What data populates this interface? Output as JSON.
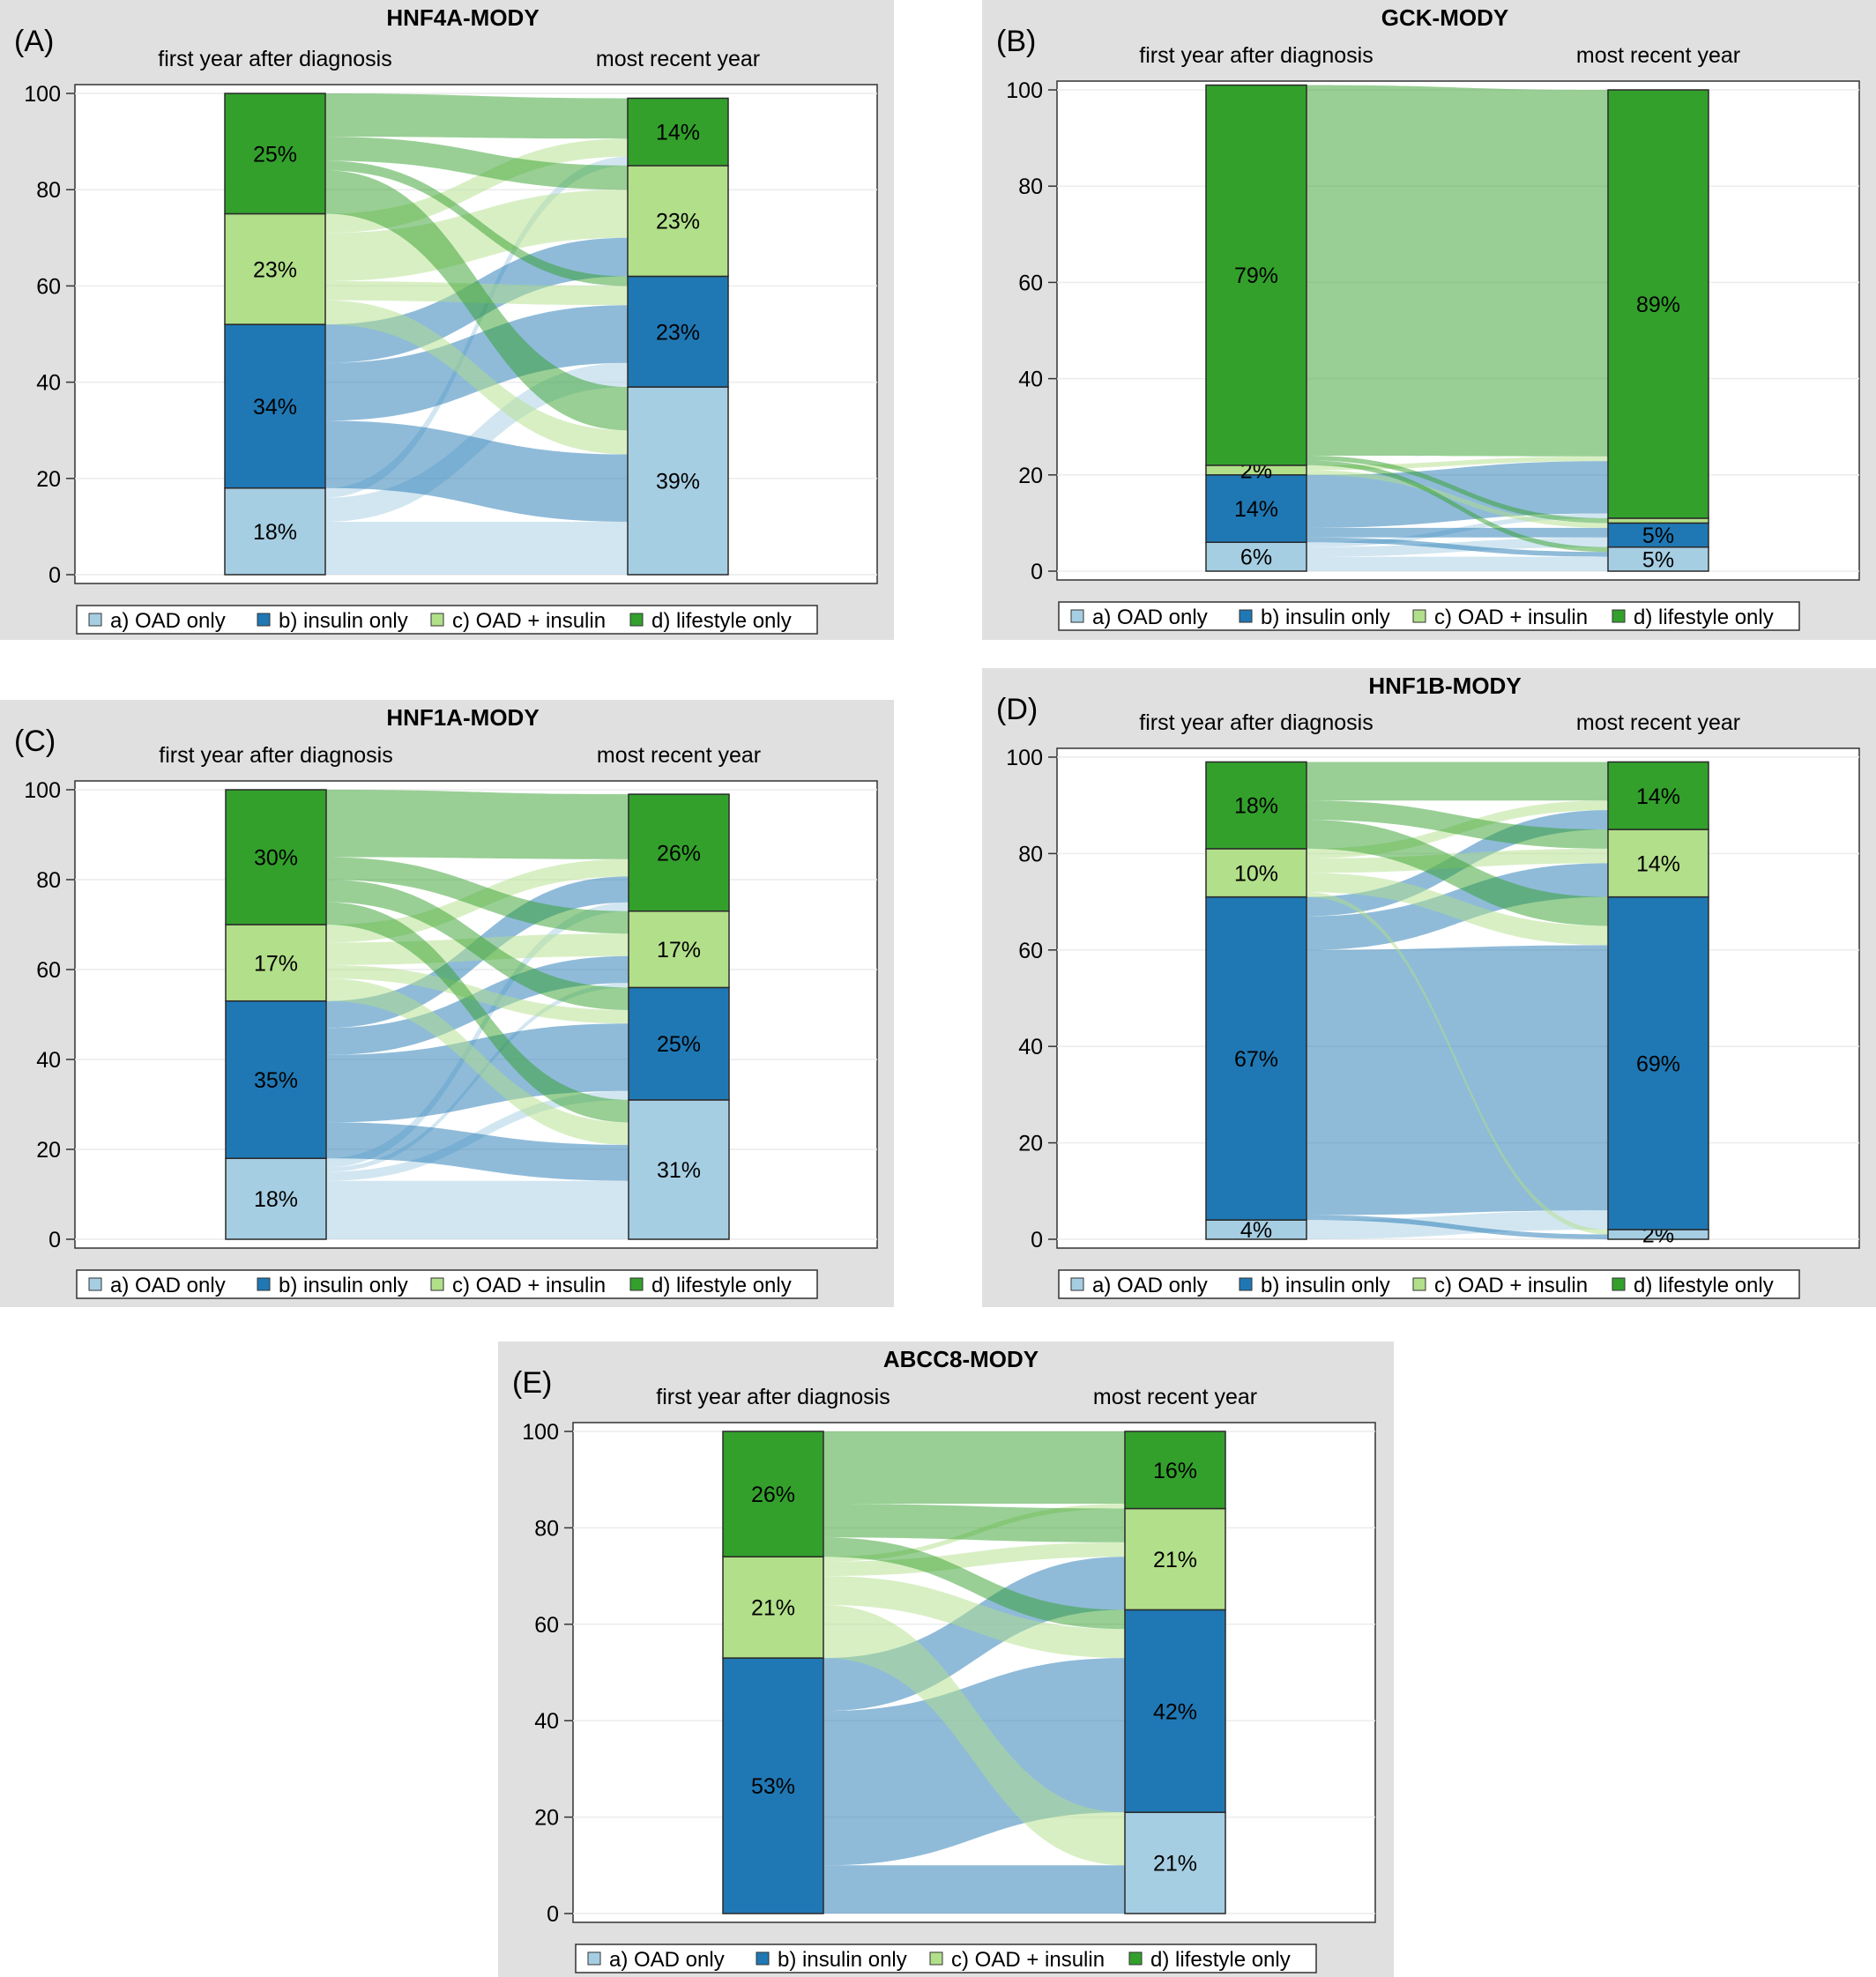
{
  "colors": {
    "oad_only": "#a6cee3",
    "insulin_only": "#1f78b4",
    "oad_insulin": "#b2df8a",
    "lifestyle_only": "#33a02c",
    "panel_background": "#e0e0e0"
  },
  "legend": {
    "items": [
      "a) OAD only",
      "b) insulin only",
      "c) OAD + insulin",
      "d) lifestyle only"
    ]
  },
  "chart_data": [
    {
      "type": "alluvial",
      "label": "(A)",
      "title": "HNF4A-MODY",
      "categories": [
        "first year after diagnosis",
        "most recent year"
      ],
      "yticks": [
        0,
        20,
        40,
        60,
        80,
        100
      ],
      "ylim": [
        0,
        100
      ],
      "first_year": [
        18,
        34,
        23,
        25
      ],
      "first_year_labels": [
        "18%",
        "34%",
        "23%",
        "25%"
      ],
      "recent_year": [
        39,
        23,
        23,
        14
      ],
      "recent_year_labels": [
        "39%",
        "23%",
        "23%",
        "14%"
      ],
      "flows": [
        [
          11,
          5,
          0,
          2
        ],
        [
          14,
          12,
          8,
          0
        ],
        [
          5,
          4,
          10,
          4
        ],
        [
          9,
          2,
          5,
          9
        ]
      ]
    },
    {
      "type": "alluvial",
      "label": "(B)",
      "title": "GCK-MODY",
      "categories": [
        "first year after diagnosis",
        "most recent year"
      ],
      "yticks": [
        0,
        20,
        40,
        60,
        80,
        100
      ],
      "ylim": [
        0,
        100
      ],
      "first_year": [
        6,
        14,
        2,
        79
      ],
      "first_year_labels": [
        "6%",
        "14%",
        "2%",
        "79%"
      ],
      "recent_year": [
        5,
        5,
        1,
        89
      ],
      "recent_year_labels": [
        "5%",
        "5%",
        "",
        "89%"
      ],
      "flows": [
        [
          3,
          2,
          0,
          1
        ],
        [
          1,
          2,
          0,
          11
        ],
        [
          0,
          1,
          0,
          1
        ],
        [
          1,
          0,
          1,
          77
        ]
      ]
    },
    {
      "type": "alluvial",
      "label": "(C)",
      "title": "HNF1A-MODY",
      "categories": [
        "first year after diagnosis",
        "most recent year"
      ],
      "yticks": [
        0,
        20,
        40,
        60,
        80,
        100
      ],
      "ylim": [
        0,
        100
      ],
      "first_year": [
        18,
        35,
        17,
        30
      ],
      "first_year_labels": [
        "18%",
        "35%",
        "17%",
        "30%"
      ],
      "recent_year": [
        31,
        25,
        17,
        26
      ],
      "recent_year_labels": [
        "31%",
        "25%",
        "17%",
        "26%"
      ],
      "flows": [
        [
          13,
          2,
          1,
          2
        ],
        [
          8,
          15,
          6,
          6
        ],
        [
          5,
          3,
          5,
          4
        ],
        [
          5,
          5,
          5,
          15
        ]
      ]
    },
    {
      "type": "alluvial",
      "label": "(D)",
      "title": "HNF1B-MODY",
      "categories": [
        "first year after diagnosis",
        "most recent year"
      ],
      "yticks": [
        0,
        20,
        40,
        60,
        80,
        100
      ],
      "ylim": [
        0,
        100
      ],
      "first_year": [
        4,
        67,
        10,
        18
      ],
      "first_year_labels": [
        "4%",
        "67%",
        "10%",
        "18%"
      ],
      "recent_year": [
        2,
        69,
        14,
        14
      ],
      "recent_year_labels": [
        "2%",
        "69%",
        "14%",
        "14%"
      ],
      "flows": [
        [
          0,
          4,
          0,
          0
        ],
        [
          1,
          55,
          7,
          4
        ],
        [
          1,
          4,
          3,
          2
        ],
        [
          0,
          6,
          4,
          8
        ]
      ]
    },
    {
      "type": "alluvial",
      "label": "(E)",
      "title": "ABCC8-MODY",
      "categories": [
        "first year after diagnosis",
        "most recent year"
      ],
      "yticks": [
        0,
        20,
        40,
        60,
        80,
        100
      ],
      "ylim": [
        0,
        100
      ],
      "first_year": [
        0,
        53,
        21,
        26
      ],
      "first_year_labels": [
        "",
        "53%",
        "21%",
        "26%"
      ],
      "recent_year": [
        21,
        42,
        21,
        16
      ],
      "recent_year_labels": [
        "21%",
        "42%",
        "21%",
        "16%"
      ],
      "flows": [
        [
          0,
          0,
          0,
          0
        ],
        [
          10,
          32,
          11,
          0
        ],
        [
          11,
          6,
          3,
          1
        ],
        [
          0,
          4,
          7,
          15
        ]
      ]
    }
  ]
}
